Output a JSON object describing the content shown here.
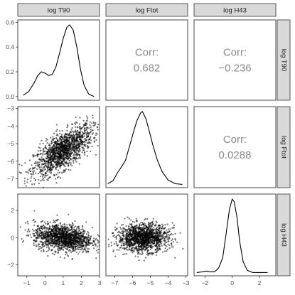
{
  "chart_data": {
    "type": "scatter-matrix",
    "variables": [
      "log T90",
      "log Ftot",
      "log H43"
    ],
    "axes": {
      "log T90": {
        "ticks": [
          -1,
          0,
          1,
          2,
          3
        ],
        "tick_labels": [
          "−1",
          "0",
          "1",
          "2",
          "3"
        ],
        "range": [
          -1.5,
          3.0
        ]
      },
      "log Ftot": {
        "ticks": [
          -7,
          -6,
          -5,
          -4,
          -3
        ],
        "tick_labels": [
          "−7",
          "−6",
          "−5",
          "−4",
          "−3"
        ],
        "range": [
          -7.5,
          -2.9
        ]
      },
      "log H43": {
        "ticks": [
          -2,
          0,
          2
        ],
        "tick_labels": [
          "−2",
          "0",
          "2"
        ],
        "range": [
          -2.8,
          3.2
        ]
      }
    },
    "density_axis": {
      "variable": "log T90",
      "ticks": [
        0.0,
        0.2,
        0.4,
        0.6
      ],
      "tick_labels": [
        "0.0",
        "0.2",
        "0.4",
        "0.6"
      ],
      "range": [
        -0.03,
        0.62
      ]
    },
    "correlations": [
      {
        "row": "log T90",
        "col": "log Ftot",
        "label": "Corr:",
        "value": "0.682"
      },
      {
        "row": "log T90",
        "col": "log H43",
        "label": "Corr:",
        "value": "−0.236"
      },
      {
        "row": "log Ftot",
        "col": "log H43",
        "label": "Corr:",
        "value": "0.0288"
      }
    ],
    "densities": {
      "log T90": [
        [
          -1.2,
          0.01
        ],
        [
          -0.9,
          0.04
        ],
        [
          -0.6,
          0.11
        ],
        [
          -0.4,
          0.17
        ],
        [
          -0.2,
          0.2
        ],
        [
          0.0,
          0.19
        ],
        [
          0.2,
          0.17
        ],
        [
          0.4,
          0.18
        ],
        [
          0.6,
          0.24
        ],
        [
          0.8,
          0.35
        ],
        [
          1.0,
          0.47
        ],
        [
          1.2,
          0.56
        ],
        [
          1.35,
          0.58
        ],
        [
          1.55,
          0.54
        ],
        [
          1.75,
          0.4
        ],
        [
          1.95,
          0.22
        ],
        [
          2.15,
          0.09
        ],
        [
          2.4,
          0.02
        ],
        [
          2.7,
          0.0
        ]
      ],
      "log Ftot": [
        [
          -7.4,
          0.01
        ],
        [
          -7.1,
          0.05
        ],
        [
          -6.85,
          0.16
        ],
        [
          -6.6,
          0.25
        ],
        [
          -6.4,
          0.33
        ],
        [
          -6.2,
          0.5
        ],
        [
          -5.95,
          0.72
        ],
        [
          -5.75,
          0.88
        ],
        [
          -5.55,
          0.98
        ],
        [
          -5.45,
          1.0
        ],
        [
          -5.25,
          0.9
        ],
        [
          -5.05,
          0.72
        ],
        [
          -4.85,
          0.53
        ],
        [
          -4.6,
          0.33
        ],
        [
          -4.35,
          0.18
        ],
        [
          -4.0,
          0.06
        ],
        [
          -3.6,
          0.01
        ],
        [
          -3.2,
          0.0
        ]
      ],
      "log H43": [
        [
          -2.6,
          0.0
        ],
        [
          -2.2,
          0.01
        ],
        [
          -1.9,
          0.02
        ],
        [
          -1.6,
          0.01
        ],
        [
          -1.3,
          0.01
        ],
        [
          -1.0,
          0.06
        ],
        [
          -0.7,
          0.2
        ],
        [
          -0.45,
          0.52
        ],
        [
          -0.2,
          0.86
        ],
        [
          0.0,
          1.0
        ],
        [
          0.15,
          0.96
        ],
        [
          0.35,
          0.75
        ],
        [
          0.55,
          0.42
        ],
        [
          0.8,
          0.15
        ],
        [
          1.1,
          0.03
        ],
        [
          1.5,
          0.0
        ],
        [
          2.0,
          0.0
        ],
        [
          2.6,
          0.0
        ]
      ]
    },
    "scatter": {
      "T90_vs_Ftot": {
        "x_mean": 1.0,
        "x_sd": 0.8,
        "y_mean": -5.4,
        "y_sd": 0.7,
        "corr": 0.682,
        "n": 1500
      },
      "T90_vs_H43": {
        "x_mean": 1.0,
        "x_sd": 0.8,
        "y_mean": 0.0,
        "y_sd": 0.5,
        "corr": -0.236,
        "n": 1500
      },
      "Ftot_vs_H43": {
        "x_mean": -5.4,
        "x_sd": 0.7,
        "y_mean": 0.0,
        "y_sd": 0.5,
        "corr": 0.0288,
        "n": 1500
      }
    },
    "colors": {
      "strip_bg": "#d9d9d9",
      "panel_border": "#333333",
      "points": "#000000",
      "corr_text": "#8a8a8a"
    }
  }
}
